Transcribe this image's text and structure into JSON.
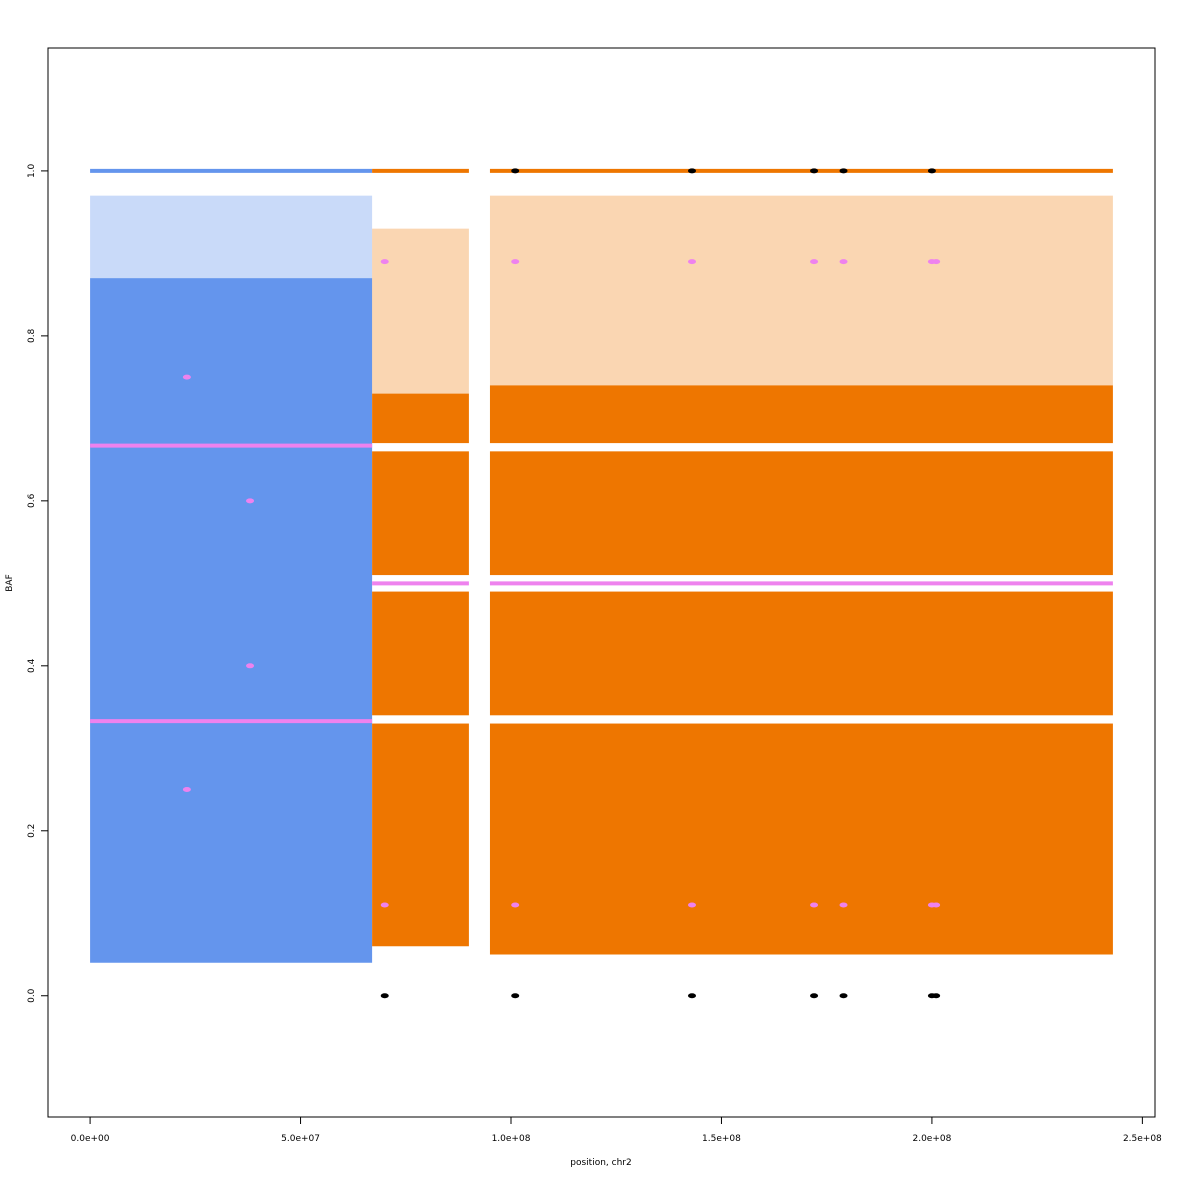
{
  "chart_data": {
    "type": "scatter",
    "xlabel": "position, chr2",
    "ylabel": "BAF",
    "xlim": [
      -10000000,
      253000000
    ],
    "ylim": [
      -0.147,
      1.149
    ],
    "xticks": [
      {
        "value": 0,
        "label": "0.0e+00"
      },
      {
        "value": 50000000,
        "label": "5.0e+07"
      },
      {
        "value": 100000000,
        "label": "1.0e+08"
      },
      {
        "value": 150000000,
        "label": "1.5e+08"
      },
      {
        "value": 200000000,
        "label": "2.0e+08"
      },
      {
        "value": 250000000,
        "label": "2.5e+08"
      }
    ],
    "yticks": [
      {
        "value": 0,
        "label": "0.0"
      },
      {
        "value": 0.2,
        "label": "0.2"
      },
      {
        "value": 0.4,
        "label": "0.4"
      },
      {
        "value": 0.6,
        "label": "0.6"
      },
      {
        "value": 0.8,
        "label": "0.8"
      },
      {
        "value": 1,
        "label": "1.0"
      }
    ],
    "regions": [
      {
        "color": "#6495ed",
        "opacity": 1,
        "x": [
          0,
          67000000
        ],
        "y": [
          0.04,
          0.87
        ]
      },
      {
        "color": "#6495ed",
        "opacity": 0.35,
        "x": [
          0,
          67000000
        ],
        "y": [
          0.87,
          0.97
        ]
      },
      {
        "color": "#ee7600",
        "opacity": 1,
        "x": [
          67000000,
          90000000
        ],
        "y": [
          0.06,
          0.33
        ]
      },
      {
        "color": "#ee7600",
        "opacity": 1,
        "x": [
          67000000,
          90000000
        ],
        "y": [
          0.34,
          0.49
        ]
      },
      {
        "color": "#ee7600",
        "opacity": 1,
        "x": [
          67000000,
          90000000
        ],
        "y": [
          0.51,
          0.66
        ]
      },
      {
        "color": "#ee7600",
        "opacity": 1,
        "x": [
          67000000,
          90000000
        ],
        "y": [
          0.67,
          0.73
        ]
      },
      {
        "color": "#ee7600",
        "opacity": 0.3,
        "x": [
          67000000,
          90000000
        ],
        "y": [
          0.73,
          0.93
        ]
      },
      {
        "color": "#ee7600",
        "opacity": 1,
        "x": [
          95000000,
          243000000
        ],
        "y": [
          0.05,
          0.33
        ]
      },
      {
        "color": "#ee7600",
        "opacity": 1,
        "x": [
          95000000,
          243000000
        ],
        "y": [
          0.34,
          0.49
        ]
      },
      {
        "color": "#ee7600",
        "opacity": 1,
        "x": [
          95000000,
          243000000
        ],
        "y": [
          0.51,
          0.66
        ]
      },
      {
        "color": "#ee7600",
        "opacity": 1,
        "x": [
          95000000,
          243000000
        ],
        "y": [
          0.67,
          0.74
        ]
      },
      {
        "color": "#ee7600",
        "opacity": 0.3,
        "x": [
          95000000,
          243000000
        ],
        "y": [
          0.74,
          0.97
        ]
      }
    ],
    "segments": [
      {
        "color": "#6495ed",
        "x": [
          0,
          67000000
        ],
        "y": 1
      },
      {
        "color": "#ee7600",
        "x": [
          67000000,
          90000000
        ],
        "y": 1
      },
      {
        "color": "#ee7600",
        "x": [
          95000000,
          243000000
        ],
        "y": 1
      },
      {
        "color": "#ee82ee",
        "x": [
          0,
          67000000
        ],
        "y": 0.667
      },
      {
        "color": "#ee82ee",
        "x": [
          0,
          67000000
        ],
        "y": 0.333
      },
      {
        "color": "#ee82ee",
        "x": [
          67000000,
          90000000
        ],
        "y": 0.5
      },
      {
        "color": "#ee82ee",
        "x": [
          95000000,
          243000000
        ],
        "y": 0.5
      }
    ],
    "series": [
      {
        "color": "#ee82ee",
        "x": [
          70000000,
          101000000,
          143000000,
          172000000,
          179000000,
          200000000,
          201000000,
          70000000,
          101000000,
          143000000,
          172000000,
          179000000,
          200000000,
          201000000,
          23000000,
          23000000,
          38000000,
          38000000
        ],
        "y": [
          0.89,
          0.89,
          0.89,
          0.89,
          0.89,
          0.89,
          0.89,
          0.11,
          0.11,
          0.11,
          0.11,
          0.11,
          0.11,
          0.11,
          0.75,
          0.25,
          0.6,
          0.4
        ]
      },
      {
        "color": "#000000",
        "x": [
          70000000,
          101000000,
          143000000,
          172000000,
          179000000,
          200000000,
          201000000,
          101000000,
          143000000,
          172000000,
          179000000,
          200000000
        ],
        "y": [
          0,
          0,
          0,
          0,
          0,
          0,
          0,
          1,
          1,
          1,
          1,
          1
        ]
      }
    ]
  }
}
